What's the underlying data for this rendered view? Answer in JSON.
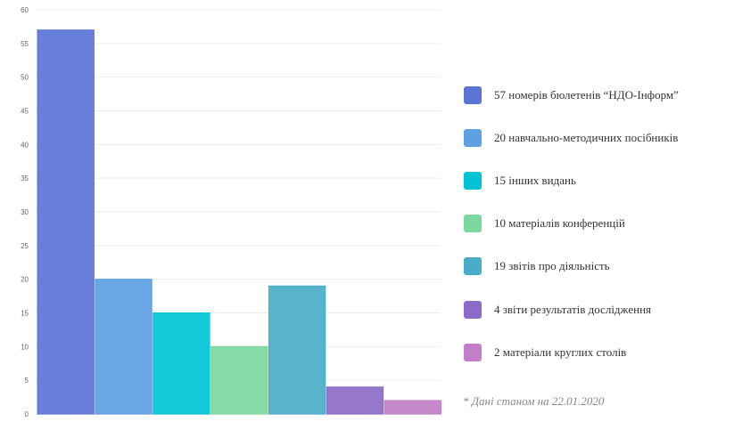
{
  "chart_data": {
    "type": "bar",
    "categories": [
      "57 номерів бюлетенів “НДО-Інформ”",
      "20 навчально-методичних посібників",
      "15 інших видань",
      "10 матеріалів конференцій",
      "19 звітів про діяльність",
      "4 звіти результатів дослідження",
      "2 матеріали круглих столів"
    ],
    "values": [
      57,
      20,
      15,
      10,
      19,
      4,
      2
    ],
    "colors": [
      "#5b74d6",
      "#5ea0e3",
      "#00c4d6",
      "#7bd89e",
      "#4aacc9",
      "#8c6bc8",
      "#c07fc8"
    ],
    "ylim": [
      0,
      60
    ],
    "yticks": [
      "0",
      "5",
      "10",
      "15",
      "20",
      "25",
      "30",
      "35",
      "40",
      "45",
      "50",
      "55",
      "60"
    ],
    "grid": true,
    "legend_position": "right"
  },
  "footnote": "* Дані станом на 22.01.2020"
}
